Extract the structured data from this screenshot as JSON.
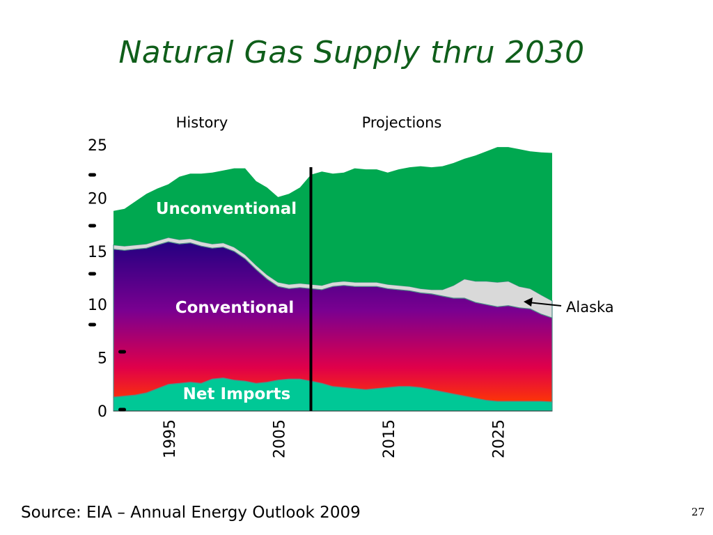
{
  "slide": {
    "title": "Natural Gas Supply thru 2030",
    "source": "Source: EIA – Annual Energy Outlook 2009",
    "page_number": "27"
  },
  "chart_data": {
    "type": "area",
    "title": "",
    "xlabel": "",
    "ylabel": "",
    "xlim": [
      1990,
      2030
    ],
    "ylim": [
      0,
      25
    ],
    "y_ticks": [
      0,
      5,
      10,
      15,
      20,
      25
    ],
    "x_ticks": [
      1995,
      2005,
      2015,
      2025
    ],
    "grid": false,
    "legend": "none",
    "history_label": "History",
    "projections_label": "Projections",
    "divider_year": 2008,
    "x": [
      1990,
      1991,
      1992,
      1993,
      1994,
      1995,
      1996,
      1997,
      1998,
      1999,
      2000,
      2001,
      2002,
      2003,
      2004,
      2005,
      2006,
      2007,
      2008,
      2009,
      2010,
      2011,
      2012,
      2013,
      2014,
      2015,
      2016,
      2017,
      2018,
      2019,
      2020,
      2021,
      2022,
      2023,
      2024,
      2025,
      2026,
      2027,
      2028,
      2029,
      2030
    ],
    "series": [
      {
        "name": "Net Imports",
        "color": "#00c896",
        "values": [
          1.3,
          1.4,
          1.5,
          1.7,
          2.1,
          2.5,
          2.6,
          2.7,
          2.6,
          3.0,
          3.1,
          2.9,
          2.8,
          2.6,
          2.7,
          2.9,
          3.0,
          3.0,
          2.8,
          2.6,
          2.3,
          2.2,
          2.1,
          2.0,
          2.1,
          2.2,
          2.3,
          2.3,
          2.2,
          2.0,
          1.8,
          1.6,
          1.4,
          1.2,
          1.0,
          0.9,
          0.9,
          0.9,
          0.9,
          0.9,
          0.85
        ]
      },
      {
        "name": "Conventional",
        "values": [
          13.9,
          13.7,
          13.7,
          13.6,
          13.5,
          13.4,
          13.1,
          13.1,
          12.9,
          12.3,
          12.3,
          12.1,
          11.5,
          10.7,
          9.7,
          8.8,
          8.5,
          8.6,
          8.7,
          8.8,
          9.4,
          9.6,
          9.6,
          9.7,
          9.6,
          9.3,
          9.1,
          9.0,
          8.9,
          9.0,
          9.0,
          9.0,
          9.2,
          9.0,
          9.0,
          8.9,
          9.0,
          8.8,
          8.7,
          8.2,
          7.9
        ]
      },
      {
        "name": "Alaska",
        "color": "#d9d9d9",
        "values": [
          0.4,
          0.4,
          0.4,
          0.4,
          0.4,
          0.4,
          0.4,
          0.4,
          0.4,
          0.4,
          0.4,
          0.4,
          0.4,
          0.4,
          0.4,
          0.4,
          0.4,
          0.4,
          0.4,
          0.4,
          0.4,
          0.4,
          0.4,
          0.4,
          0.4,
          0.4,
          0.4,
          0.4,
          0.4,
          0.4,
          0.6,
          1.2,
          1.8,
          2.0,
          2.2,
          2.3,
          2.3,
          2.0,
          1.9,
          1.8,
          1.6
        ]
      },
      {
        "name": "Unconventional",
        "color": "#00a850",
        "values": [
          3.2,
          3.5,
          4.1,
          4.7,
          4.9,
          5.0,
          5.9,
          6.1,
          6.4,
          6.7,
          6.8,
          7.4,
          8.1,
          7.9,
          8.2,
          8.0,
          8.5,
          9.0,
          10.3,
          10.7,
          10.2,
          10.2,
          10.7,
          10.6,
          10.6,
          10.5,
          10.9,
          11.2,
          11.5,
          11.5,
          11.6,
          11.5,
          11.3,
          11.8,
          12.2,
          12.7,
          12.6,
          12.9,
          12.9,
          13.4,
          13.9
        ]
      }
    ],
    "callout": "Alaska"
  }
}
